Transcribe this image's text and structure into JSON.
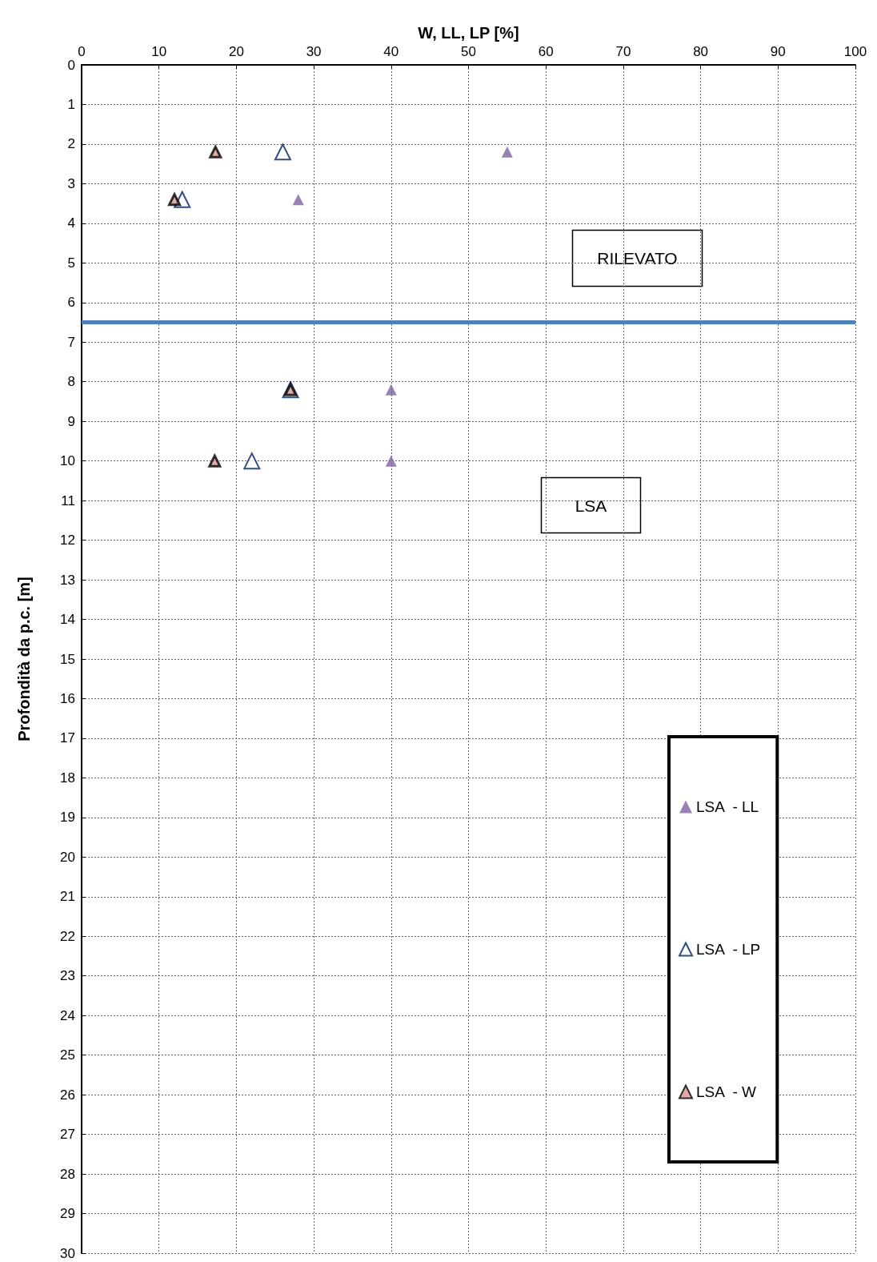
{
  "chart_data": {
    "type": "scatter",
    "xlabel": "W, LL, LP [%]",
    "ylabel": "Profondità da p.c. [m]",
    "xlim": [
      0,
      100
    ],
    "xticks": [
      0,
      10,
      20,
      30,
      40,
      50,
      60,
      70,
      80,
      90,
      100
    ],
    "ylim": [
      30,
      0
    ],
    "yticks": [
      0,
      1,
      2,
      3,
      4,
      5,
      6,
      7,
      8,
      9,
      10,
      11,
      12,
      13,
      14,
      15,
      16,
      17,
      18,
      19,
      20,
      21,
      22,
      23,
      24,
      25,
      26,
      27,
      28,
      29,
      30
    ],
    "grid": true,
    "legend": "bottom right",
    "marker": "triangle",
    "annotations": [
      "RILEVATO",
      "LSA"
    ],
    "ref_lines": [
      {
        "axis": "y",
        "value": 6.5,
        "color": "#4f81bd"
      }
    ],
    "series": [
      {
        "name": "LSA  - LL",
        "color": "#8064a2",
        "x": [
          55,
          28,
          40,
          40
        ],
        "values": [
          2.2,
          3.4,
          8.2,
          10
        ]
      },
      {
        "name": "LSA  - LP",
        "color": "#002060",
        "x": [
          26,
          13,
          27,
          22
        ],
        "values": [
          2.2,
          3.4,
          8.2,
          10
        ]
      },
      {
        "name": "LSA  - W",
        "color": "#d99694",
        "x": [
          17.3,
          12,
          27,
          17.2
        ],
        "values": [
          2.2,
          3.4,
          8.2,
          10
        ]
      }
    ]
  }
}
